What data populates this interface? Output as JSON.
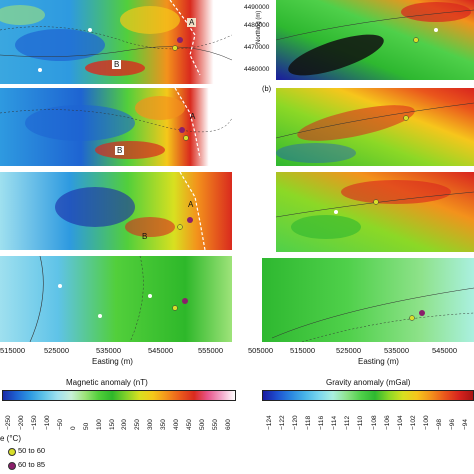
{
  "figure": {
    "panel_b_label": "(b)",
    "side_labels": [
      "A",
      "A",
      "A",
      "B",
      "B",
      "B"
    ],
    "left_easting_ticks": [
      "515000",
      "525000",
      "535000",
      "545000",
      "555000"
    ],
    "right_easting_ticks": [
      "505000",
      "515000",
      "525000",
      "535000",
      "545000"
    ],
    "easting_label_left": "Easting (m)",
    "easting_label_right": "Easting (m)",
    "northing_label": "Northing (m)",
    "northing_ticks": [
      "4490000",
      "4480000",
      "4470000",
      "4460000"
    ],
    "magnetic": {
      "label": "Magnetic anomaly (nT)",
      "ticks": [
        "−250",
        "−200",
        "−150",
        "−100",
        "−50",
        "0",
        "50",
        "100",
        "150",
        "200",
        "250",
        "300",
        "350",
        "400",
        "450",
        "500",
        "550",
        "600"
      ],
      "colors": [
        "#1a2aa8",
        "#1e64d2",
        "#2e9ae0",
        "#5fc3e8",
        "#9fe0ef",
        "#c8f0d8",
        "#9ee37a",
        "#52cf3b",
        "#2eb82a",
        "#7fd12a",
        "#d8e020",
        "#f5c81a",
        "#f3921c",
        "#ea5a1c",
        "#d92a1e",
        "#e8558a",
        "#f2a6c8",
        "#ffffff"
      ]
    },
    "gravity": {
      "label": "Gravity anomaly (mGal)",
      "ticks": [
        "−124",
        "−122",
        "−120",
        "−118",
        "−116",
        "−114",
        "−112",
        "−110",
        "−108",
        "−106",
        "−104",
        "−102",
        "−100",
        "−98",
        "−96",
        "−94"
      ],
      "colors": [
        "#1a1aa0",
        "#1e50d0",
        "#2a86e0",
        "#48b4e8",
        "#7ad6ee",
        "#aaf0e0",
        "#8ee28a",
        "#4fd04a",
        "#2eb830",
        "#8cd826",
        "#d8e020",
        "#f6c61c",
        "#f3921c",
        "#ea561c",
        "#d8241e",
        "#a81414"
      ]
    },
    "temperature": {
      "label": "e (°C)",
      "classes": [
        {
          "label": "50 to 60",
          "color": "#d8df2a"
        },
        {
          "label": "60 to 85",
          "color": "#8a1f6a"
        }
      ]
    }
  }
}
